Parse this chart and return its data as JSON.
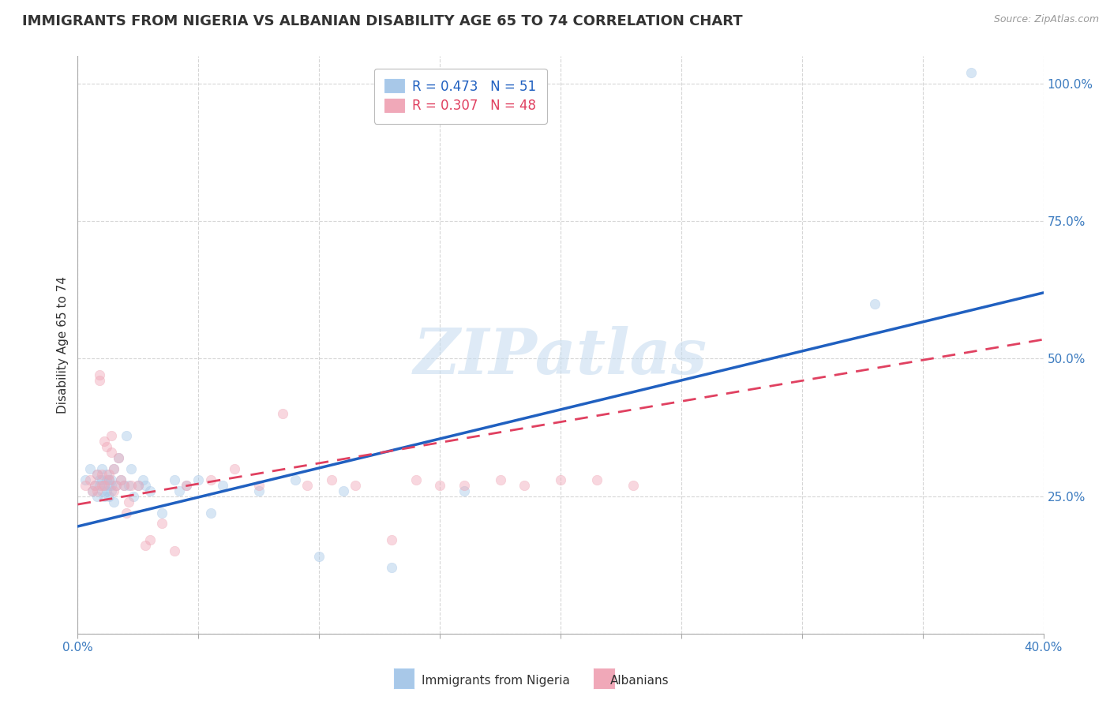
{
  "title": "IMMIGRANTS FROM NIGERIA VS ALBANIAN DISABILITY AGE 65 TO 74 CORRELATION CHART",
  "source": "Source: ZipAtlas.com",
  "ylabel": "Disability Age 65 to 74",
  "xlim": [
    0.0,
    0.4
  ],
  "ylim": [
    0.0,
    1.05
  ],
  "xticks": [
    0.0,
    0.05,
    0.1,
    0.15,
    0.2,
    0.25,
    0.3,
    0.35,
    0.4
  ],
  "xticklabels": [
    "0.0%",
    "",
    "",
    "",
    "",
    "",
    "",
    "",
    "40.0%"
  ],
  "yticks": [
    0.0,
    0.25,
    0.5,
    0.75,
    1.0
  ],
  "yticklabels": [
    "",
    "25.0%",
    "50.0%",
    "75.0%",
    "100.0%"
  ],
  "nigeria_color": "#a8c8e8",
  "albanian_color": "#f0a8b8",
  "nigeria_R": 0.473,
  "nigeria_N": 51,
  "albanian_R": 0.307,
  "albanian_N": 48,
  "nigeria_line_color": "#2060c0",
  "albanian_line_color": "#e04060",
  "watermark_text": "ZIPatlas",
  "nigeria_points_x": [
    0.003,
    0.005,
    0.006,
    0.007,
    0.008,
    0.008,
    0.009,
    0.009,
    0.01,
    0.01,
    0.01,
    0.011,
    0.011,
    0.012,
    0.012,
    0.012,
    0.013,
    0.013,
    0.013,
    0.014,
    0.014,
    0.014,
    0.015,
    0.015,
    0.016,
    0.017,
    0.018,
    0.019,
    0.02,
    0.021,
    0.022,
    0.023,
    0.025,
    0.027,
    0.028,
    0.03,
    0.035,
    0.04,
    0.042,
    0.045,
    0.05,
    0.055,
    0.06,
    0.075,
    0.09,
    0.1,
    0.11,
    0.13,
    0.16,
    0.33,
    0.37
  ],
  "nigeria_points_y": [
    0.28,
    0.3,
    0.26,
    0.27,
    0.25,
    0.29,
    0.28,
    0.27,
    0.26,
    0.28,
    0.3,
    0.25,
    0.27,
    0.26,
    0.28,
    0.29,
    0.25,
    0.27,
    0.28,
    0.26,
    0.28,
    0.27,
    0.24,
    0.3,
    0.27,
    0.32,
    0.28,
    0.27,
    0.36,
    0.27,
    0.3,
    0.25,
    0.27,
    0.28,
    0.27,
    0.26,
    0.22,
    0.28,
    0.26,
    0.27,
    0.28,
    0.22,
    0.27,
    0.26,
    0.28,
    0.14,
    0.26,
    0.12,
    0.26,
    0.6,
    1.02
  ],
  "albanian_points_x": [
    0.003,
    0.005,
    0.006,
    0.007,
    0.008,
    0.008,
    0.009,
    0.009,
    0.01,
    0.01,
    0.011,
    0.011,
    0.012,
    0.013,
    0.013,
    0.014,
    0.014,
    0.015,
    0.015,
    0.016,
    0.017,
    0.018,
    0.019,
    0.02,
    0.021,
    0.022,
    0.025,
    0.028,
    0.03,
    0.035,
    0.04,
    0.045,
    0.055,
    0.065,
    0.075,
    0.085,
    0.095,
    0.105,
    0.115,
    0.13,
    0.14,
    0.15,
    0.16,
    0.175,
    0.185,
    0.2,
    0.215,
    0.23
  ],
  "albanian_points_y": [
    0.27,
    0.28,
    0.26,
    0.27,
    0.26,
    0.29,
    0.46,
    0.47,
    0.27,
    0.29,
    0.27,
    0.35,
    0.34,
    0.28,
    0.29,
    0.33,
    0.36,
    0.26,
    0.3,
    0.27,
    0.32,
    0.28,
    0.27,
    0.22,
    0.24,
    0.27,
    0.27,
    0.16,
    0.17,
    0.2,
    0.15,
    0.27,
    0.28,
    0.3,
    0.27,
    0.4,
    0.27,
    0.28,
    0.27,
    0.17,
    0.28,
    0.27,
    0.27,
    0.28,
    0.27,
    0.28,
    0.28,
    0.27
  ],
  "nigeria_trend_x0": 0.0,
  "nigeria_trend_y0": 0.195,
  "nigeria_trend_x1": 0.4,
  "nigeria_trend_y1": 0.62,
  "albanian_trend_x0": 0.0,
  "albanian_trend_y0": 0.235,
  "albanian_trend_x1": 0.4,
  "albanian_trend_y1": 0.535,
  "background_color": "#ffffff",
  "grid_color": "#cccccc",
  "title_fontsize": 13,
  "axis_label_fontsize": 11,
  "tick_fontsize": 11,
  "legend_fontsize": 12,
  "marker_size": 80,
  "marker_alpha": 0.45
}
